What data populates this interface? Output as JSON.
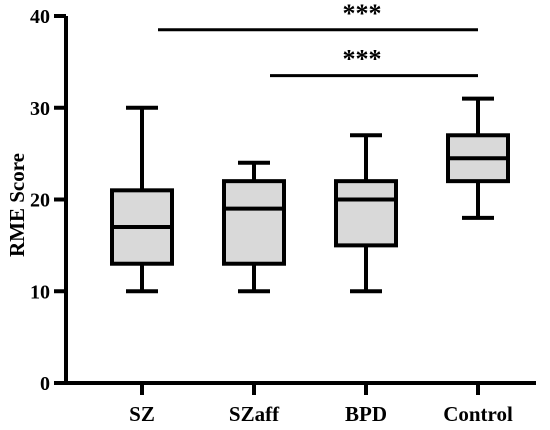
{
  "chart_data": {
    "type": "box",
    "title": "",
    "xlabel": "",
    "ylabel": "RME Score",
    "ylim": [
      0,
      40
    ],
    "yticks": [
      0,
      10,
      20,
      30,
      40
    ],
    "grid": false,
    "categories": [
      "SZ",
      "SZaff",
      "BPD",
      "Control"
    ],
    "boxes": [
      {
        "category": "SZ",
        "min": 10,
        "q1": 13,
        "median": 17,
        "q3": 21,
        "max": 30
      },
      {
        "category": "SZaff",
        "min": 10,
        "q1": 13,
        "median": 19,
        "q3": 22,
        "max": 24
      },
      {
        "category": "BPD",
        "min": 10,
        "q1": 15,
        "median": 20,
        "q3": 22,
        "max": 27
      },
      {
        "category": "Control",
        "min": 18,
        "q1": 22,
        "median": 24.5,
        "q3": 27,
        "max": 31
      }
    ],
    "significance": [
      {
        "from": "SZ",
        "to": "Control",
        "y": 38.5,
        "label": "***"
      },
      {
        "from": "SZaff",
        "to": "Control",
        "y": 33.5,
        "label": "***"
      }
    ],
    "colors": {
      "box_fill": "#d9d9d9",
      "stroke": "#000000"
    }
  }
}
